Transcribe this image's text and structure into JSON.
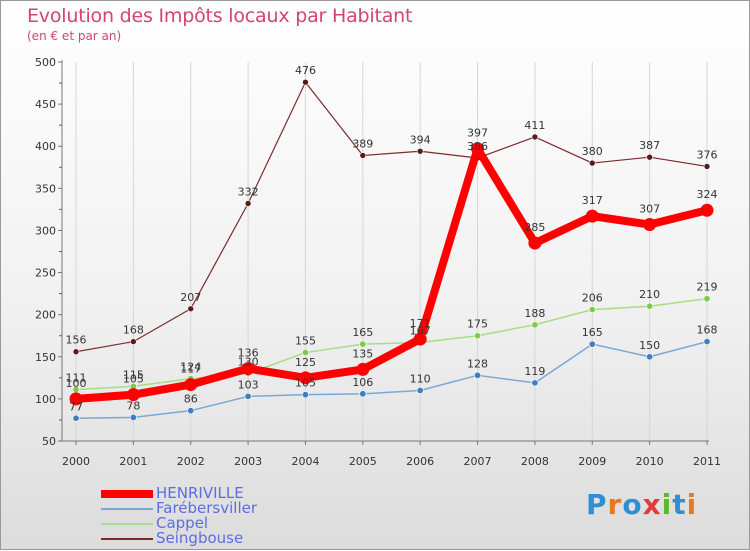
{
  "title": "Evolution des Impôts locaux par Habitant",
  "subtitle": "(en € et par an)",
  "logo": {
    "text": "Proxiti",
    "colors": [
      "#2f8fd0",
      "#e87a1e",
      "#2f8fd0",
      "#e03c3c",
      "#5fb82a",
      "#2f8fd0",
      "#e87a1e"
    ]
  },
  "chart_data": {
    "type": "line",
    "title": "Evolution des Impôts locaux par Habitant",
    "subtitle": "(en € et par an)",
    "xlabel": "",
    "ylabel": "",
    "categories": [
      "2000",
      "2001",
      "2002",
      "2003",
      "2004",
      "2005",
      "2006",
      "2007",
      "2008",
      "2009",
      "2010",
      "2011"
    ],
    "ylim": [
      50,
      500
    ],
    "yticks": [
      50,
      100,
      150,
      200,
      250,
      300,
      350,
      400,
      450,
      500
    ],
    "grid": "vertical",
    "legend_position": "bottom-left",
    "series": [
      {
        "name": "Seingbouse",
        "color": "#7a2b2b",
        "values": [
          156,
          168,
          207,
          332,
          476,
          389,
          394,
          386,
          411,
          380,
          387,
          376
        ],
        "labels": [
          "156",
          "168",
          "207",
          "332",
          "476",
          "389",
          "394",
          "386",
          "411",
          "380",
          "387",
          "376"
        ]
      },
      {
        "name": "Cappel",
        "color": "#9ad97a",
        "values": [
          111,
          115,
          124,
          130,
          155,
          165,
          167,
          175,
          188,
          206,
          210,
          219
        ],
        "labels": [
          "111",
          "115",
          "124",
          "130",
          "155",
          "165",
          "167",
          "175",
          "188",
          "206",
          "210",
          "219"
        ]
      },
      {
        "name": "Farébersviller",
        "color": "#6fa0cf",
        "values": [
          77,
          78,
          86,
          103,
          105,
          106,
          110,
          128,
          119,
          165,
          150,
          168
        ],
        "labels": [
          "77",
          "78",
          "86",
          "103",
          "105",
          "106",
          "110",
          "128",
          "119",
          "165",
          "150",
          "168"
        ]
      },
      {
        "name": "HENRIVILLE",
        "color": "#ff0000",
        "values": [
          100,
          105,
          117,
          136,
          125,
          135,
          171,
          397,
          285,
          317,
          307,
          324
        ],
        "labels": [
          "100",
          "105",
          "117",
          "136",
          "125",
          "135",
          "171",
          "397",
          "285",
          "317",
          "307",
          "324"
        ]
      }
    ],
    "legend_order": [
      "HENRIVILLE",
      "Farébersviller",
      "Cappel",
      "Seingbouse"
    ]
  }
}
